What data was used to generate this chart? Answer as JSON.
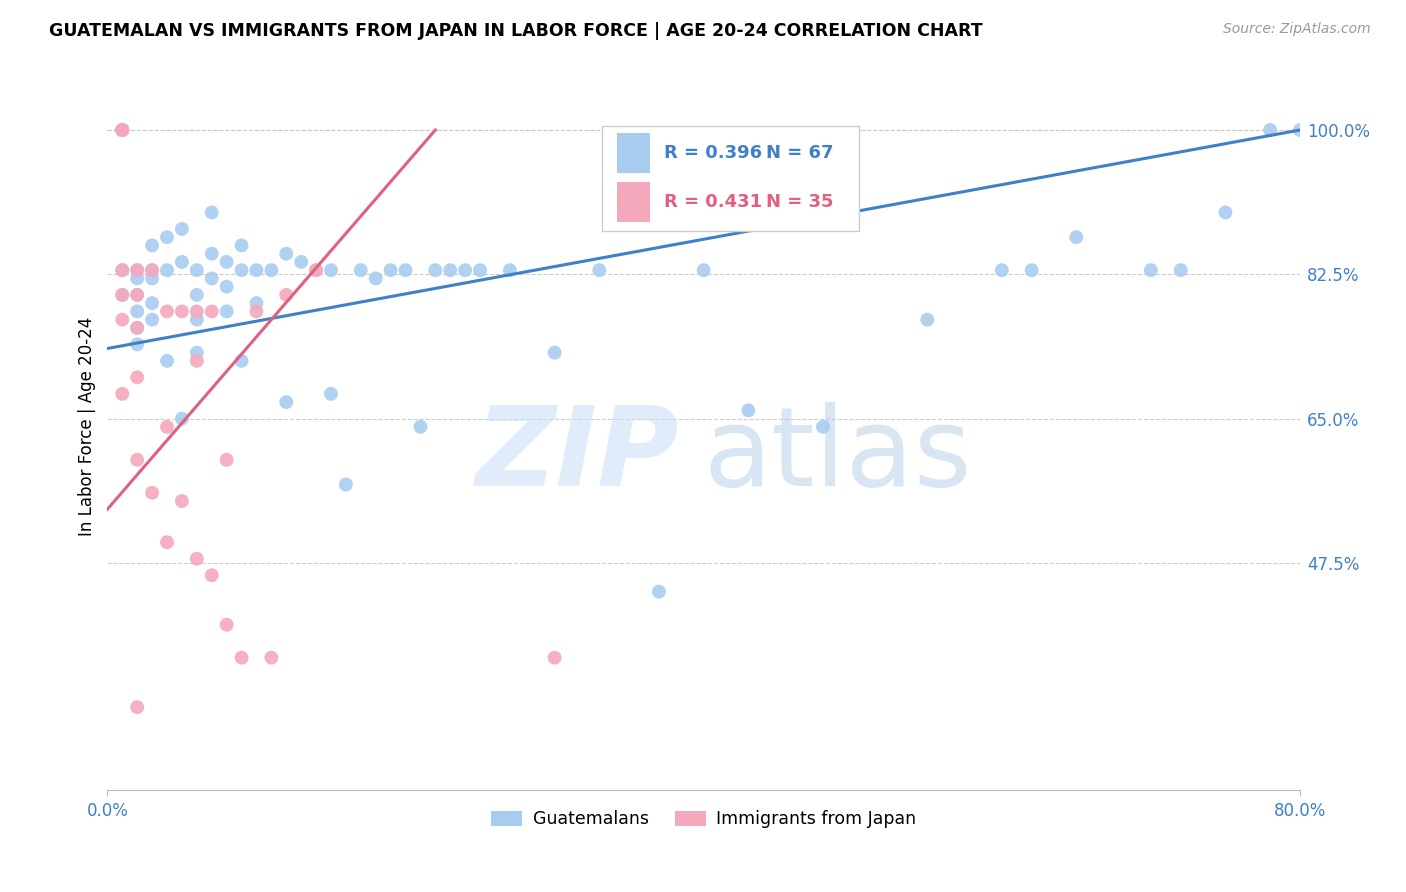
{
  "title": "GUATEMALAN VS IMMIGRANTS FROM JAPAN IN LABOR FORCE | AGE 20-24 CORRELATION CHART",
  "source": "Source: ZipAtlas.com",
  "ylabel": "In Labor Force | Age 20-24",
  "xmin": 0.0,
  "xmax": 0.8,
  "ymin": 0.2,
  "ymax": 1.08,
  "ytick_vals": [
    0.475,
    0.65,
    0.825,
    1.0
  ],
  "ytick_labels": [
    "47.5%",
    "65.0%",
    "82.5%",
    "100.0%"
  ],
  "xtick_vals": [
    0.0,
    0.8
  ],
  "xtick_labels": [
    "0.0%",
    "80.0%"
  ],
  "legend_blue_r": "R = 0.396",
  "legend_blue_n": "N = 67",
  "legend_pink_r": "R = 0.431",
  "legend_pink_n": "N = 35",
  "blue_color": "#A8CCF0",
  "pink_color": "#F4A8BC",
  "trendline_blue_color": "#4080C8",
  "trendline_pink_color": "#E06080",
  "blue_x": [
    0.01,
    0.01,
    0.02,
    0.02,
    0.02,
    0.02,
    0.02,
    0.02,
    0.03,
    0.03,
    0.03,
    0.03,
    0.03,
    0.04,
    0.04,
    0.04,
    0.05,
    0.05,
    0.05,
    0.06,
    0.06,
    0.06,
    0.06,
    0.07,
    0.07,
    0.07,
    0.08,
    0.08,
    0.08,
    0.09,
    0.09,
    0.09,
    0.1,
    0.1,
    0.11,
    0.12,
    0.12,
    0.13,
    0.14,
    0.15,
    0.15,
    0.16,
    0.17,
    0.18,
    0.19,
    0.2,
    0.21,
    0.22,
    0.23,
    0.24,
    0.25,
    0.27,
    0.3,
    0.33,
    0.37,
    0.4,
    0.43,
    0.48,
    0.55,
    0.6,
    0.62,
    0.65,
    0.7,
    0.72,
    0.75,
    0.78,
    0.8
  ],
  "blue_y": [
    0.83,
    0.8,
    0.83,
    0.82,
    0.8,
    0.78,
    0.76,
    0.74,
    0.86,
    0.83,
    0.82,
    0.79,
    0.77,
    0.87,
    0.83,
    0.72,
    0.88,
    0.84,
    0.65,
    0.83,
    0.8,
    0.77,
    0.73,
    0.9,
    0.85,
    0.82,
    0.84,
    0.81,
    0.78,
    0.86,
    0.83,
    0.72,
    0.83,
    0.79,
    0.83,
    0.85,
    0.67,
    0.84,
    0.83,
    0.83,
    0.68,
    0.57,
    0.83,
    0.82,
    0.83,
    0.83,
    0.64,
    0.83,
    0.83,
    0.83,
    0.83,
    0.83,
    0.73,
    0.83,
    0.44,
    0.83,
    0.66,
    0.64,
    0.77,
    0.83,
    0.83,
    0.87,
    0.83,
    0.83,
    0.9,
    1.0,
    1.0
  ],
  "pink_x": [
    0.01,
    0.01,
    0.01,
    0.01,
    0.01,
    0.01,
    0.01,
    0.01,
    0.01,
    0.02,
    0.02,
    0.02,
    0.02,
    0.02,
    0.02,
    0.03,
    0.03,
    0.04,
    0.04,
    0.04,
    0.05,
    0.05,
    0.06,
    0.06,
    0.06,
    0.07,
    0.07,
    0.08,
    0.08,
    0.09,
    0.1,
    0.11,
    0.12,
    0.14,
    0.3
  ],
  "pink_y": [
    1.0,
    1.0,
    1.0,
    1.0,
    1.0,
    0.83,
    0.8,
    0.77,
    0.68,
    0.83,
    0.8,
    0.76,
    0.7,
    0.6,
    0.3,
    0.83,
    0.56,
    0.78,
    0.5,
    0.64,
    0.78,
    0.55,
    0.78,
    0.72,
    0.48,
    0.78,
    0.46,
    0.6,
    0.4,
    0.36,
    0.78,
    0.36,
    0.8,
    0.83,
    0.36
  ],
  "blue_trendline_x": [
    0.0,
    0.8
  ],
  "blue_trendline_y": [
    0.735,
    1.0
  ],
  "pink_trendline_x": [
    0.0,
    0.22
  ],
  "pink_trendline_y": [
    0.54,
    1.0
  ]
}
